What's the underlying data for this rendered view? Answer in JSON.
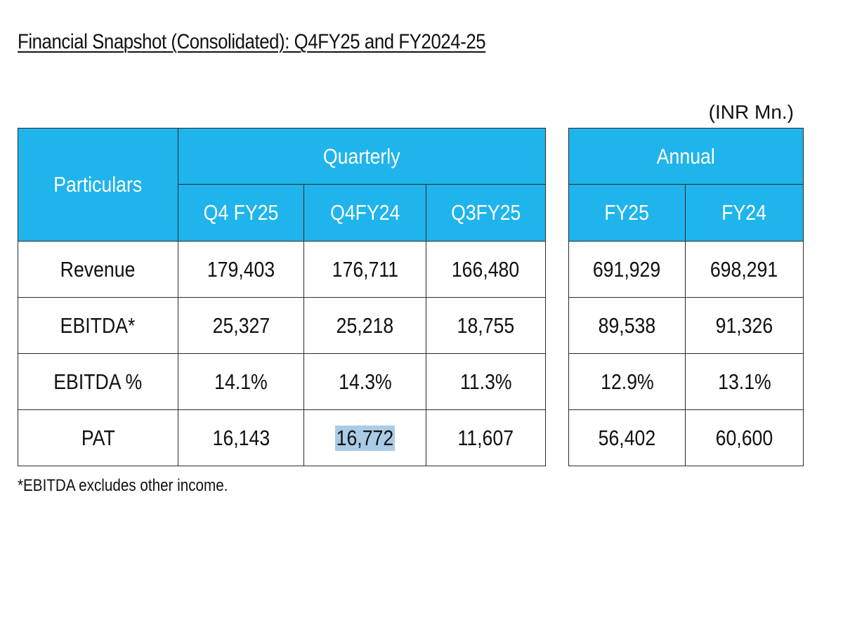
{
  "title": "Financial Snapshot (Consolidated): Q4FY25 and FY2024-25",
  "unit": "(INR Mn.)",
  "quarterly": {
    "particulars_header": "Particulars",
    "group_header": "Quarterly",
    "columns": [
      "Q4 FY25",
      "Q4FY24",
      "Q3FY25"
    ]
  },
  "annual": {
    "group_header": "Annual",
    "columns": [
      "FY25",
      "FY24"
    ]
  },
  "rows": [
    {
      "label": "Revenue",
      "q4fy25": "179,403",
      "q4fy24": "176,711",
      "q3fy25": "166,480",
      "fy25": "691,929",
      "fy24": "698,291"
    },
    {
      "label": "EBITDA*",
      "q4fy25": "25,327",
      "q4fy24": "25,218",
      "q3fy25": "18,755",
      "fy25": "89,538",
      "fy24": "91,326"
    },
    {
      "label": "EBITDA %",
      "q4fy25": "14.1%",
      "q4fy24": "14.3%",
      "q3fy25": "11.3%",
      "fy25": "12.9%",
      "fy24": "13.1%"
    },
    {
      "label": "PAT",
      "q4fy25": "16,143",
      "q4fy24": "16,772",
      "q3fy25": "11,607",
      "fy25": "56,402",
      "fy24": "60,600"
    }
  ],
  "footnote": "*EBITDA excludes other income.",
  "colors": {
    "header_bg": "#1fb4ec",
    "header_text": "#ffffff",
    "selection_highlight": "#a9cbe6"
  }
}
